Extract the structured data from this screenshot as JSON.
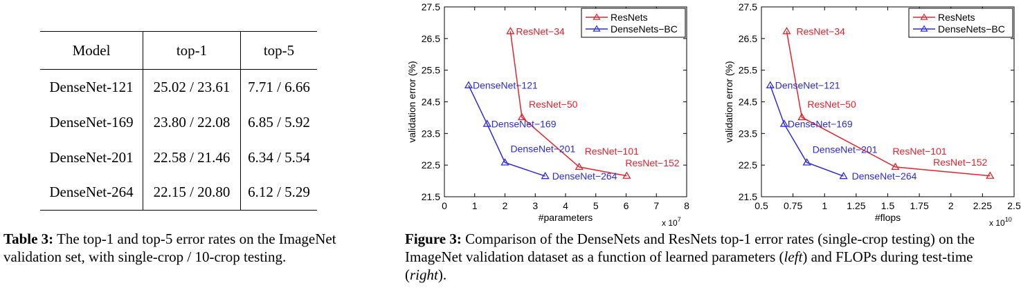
{
  "table": {
    "headers": [
      "Model",
      "top-1",
      "top-5"
    ],
    "rows": [
      [
        "DenseNet-121",
        "25.02 / 23.61",
        "7.71 / 6.66"
      ],
      [
        "DenseNet-169",
        "23.80 / 22.08",
        "6.85 / 5.92"
      ],
      [
        "DenseNet-201",
        "22.58 / 21.46",
        "6.34 / 5.54"
      ],
      [
        "DenseNet-264",
        "22.15 / 20.80",
        "6.12 / 5.29"
      ]
    ]
  },
  "table_caption": {
    "label": "Table 3:",
    "text": " The top-1 and top-5 error rates on the ImageNet validation set, with single-crop / 10-crop testing."
  },
  "figure_caption": {
    "label": "Figure 3:",
    "text_1": " Comparison of the DenseNets and ResNets top-1 error rates (single-crop testing) on the ImageNet validation dataset as a function of learned parameters (",
    "left": "left",
    "text_2": ") and FLOPs during test-time (",
    "right": "right",
    "text_3": ")."
  },
  "chart_data": [
    {
      "type": "line",
      "xlabel": "#parameters",
      "ylabel": "validation error (%)",
      "x_multiplier": "x 10",
      "x_exponent": "7",
      "xlim": [
        0,
        80000000
      ],
      "ylim": [
        21.5,
        27.5
      ],
      "xticks": [
        0,
        10000000,
        20000000,
        30000000,
        40000000,
        50000000,
        60000000,
        70000000,
        80000000
      ],
      "xtick_labels": [
        "0",
        "1",
        "2",
        "3",
        "4",
        "5",
        "6",
        "7",
        "8"
      ],
      "yticks": [
        21.5,
        22.5,
        23.5,
        24.5,
        25.5,
        26.5,
        27.5
      ],
      "ytick_labels": [
        "21.5",
        "22.5",
        "23.5",
        "24.5",
        "25.5",
        "26.5",
        "27.5"
      ],
      "legend_position": "top-right",
      "series": [
        {
          "name": "ResNets",
          "color": "#e8202a",
          "points": [
            {
              "label": "ResNet−34",
              "x": 21800000,
              "y": 26.73
            },
            {
              "label": "ResNet−50",
              "x": 25600000,
              "y": 24.01
            },
            {
              "label": "ResNet−101",
              "x": 44500000,
              "y": 22.44
            },
            {
              "label": "ResNet−152",
              "x": 60200000,
              "y": 22.16
            }
          ]
        },
        {
          "name": "DenseNets−BC",
          "color": "#2a2ae8",
          "points": [
            {
              "label": "DenseNet−121",
              "x": 8000000,
              "y": 25.02
            },
            {
              "label": "DenseNet−169",
              "x": 14100000,
              "y": 23.8
            },
            {
              "label": "DenseNet−201",
              "x": 20000000,
              "y": 22.58
            },
            {
              "label": "DenseNet−264",
              "x": 33300000,
              "y": 22.15
            }
          ]
        }
      ]
    },
    {
      "type": "line",
      "xlabel": "#flops",
      "ylabel": "validation error (%)",
      "x_multiplier": "x 10",
      "x_exponent": "10",
      "xlim": [
        5000000000,
        25000000000
      ],
      "ylim": [
        21.5,
        27.5
      ],
      "xticks": [
        5000000000,
        7500000000,
        10000000000,
        12500000000,
        15000000000,
        17500000000,
        20000000000,
        22500000000,
        25000000000
      ],
      "xtick_labels": [
        "0.5",
        "0.75",
        "1",
        "1.25",
        "1.5",
        "1.75",
        "2",
        "2.25",
        "2.5"
      ],
      "yticks": [
        21.5,
        22.5,
        23.5,
        24.5,
        25.5,
        26.5,
        27.5
      ],
      "ytick_labels": [
        "21.5",
        "22.5",
        "23.5",
        "24.5",
        "25.5",
        "26.5",
        "27.5"
      ],
      "legend_position": "top-right",
      "series": [
        {
          "name": "ResNets",
          "color": "#e8202a",
          "points": [
            {
              "label": "ResNet−34",
              "x": 7000000000,
              "y": 26.73
            },
            {
              "label": "ResNet−50",
              "x": 8200000000,
              "y": 24.01
            },
            {
              "label": "ResNet−101",
              "x": 15600000000,
              "y": 22.44
            },
            {
              "label": "ResNet−152",
              "x": 23100000000,
              "y": 22.16
            }
          ]
        },
        {
          "name": "DenseNets−BC",
          "color": "#2a2ae8",
          "points": [
            {
              "label": "DenseNet−121",
              "x": 5700000000,
              "y": 25.02
            },
            {
              "label": "DenseNet−169",
              "x": 6800000000,
              "y": 23.8
            },
            {
              "label": "DenseNet−201",
              "x": 8600000000,
              "y": 22.58
            },
            {
              "label": "DenseNet−264",
              "x": 11500000000,
              "y": 22.15
            }
          ]
        }
      ]
    }
  ]
}
